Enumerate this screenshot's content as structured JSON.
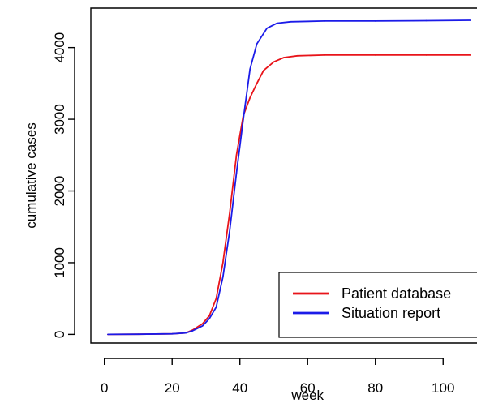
{
  "chart_data": {
    "type": "line",
    "title": "",
    "xlabel": "week",
    "ylabel": "cumulative cases",
    "xlim": [
      -4,
      110
    ],
    "ylim": [
      -120,
      4550
    ],
    "xticks": [
      0,
      20,
      40,
      60,
      80,
      100
    ],
    "yticks": [
      0,
      1000,
      2000,
      3000,
      4000
    ],
    "grid": false,
    "legend_position": "bottom-right",
    "series": [
      {
        "name": "Patient database",
        "color": "#e8141a",
        "points": [
          [
            1,
            0
          ],
          [
            10,
            2
          ],
          [
            20,
            8
          ],
          [
            24,
            20
          ],
          [
            26,
            60
          ],
          [
            29,
            150
          ],
          [
            31,
            260
          ],
          [
            33,
            500
          ],
          [
            35,
            1000
          ],
          [
            37,
            1700
          ],
          [
            39,
            2500
          ],
          [
            41,
            3050
          ],
          [
            43,
            3300
          ],
          [
            45,
            3500
          ],
          [
            47,
            3680
          ],
          [
            50,
            3800
          ],
          [
            53,
            3860
          ],
          [
            57,
            3885
          ],
          [
            65,
            3895
          ],
          [
            80,
            3895
          ],
          [
            95,
            3895
          ],
          [
            108,
            3895
          ]
        ]
      },
      {
        "name": "Situation report",
        "color": "#1b1be8",
        "points": [
          [
            1,
            0
          ],
          [
            10,
            2
          ],
          [
            20,
            8
          ],
          [
            24,
            20
          ],
          [
            26,
            50
          ],
          [
            29,
            120
          ],
          [
            31,
            220
          ],
          [
            33,
            380
          ],
          [
            35,
            800
          ],
          [
            37,
            1450
          ],
          [
            39,
            2250
          ],
          [
            41,
            3000
          ],
          [
            43,
            3700
          ],
          [
            45,
            4050
          ],
          [
            48,
            4270
          ],
          [
            51,
            4340
          ],
          [
            55,
            4360
          ],
          [
            65,
            4370
          ],
          [
            80,
            4370
          ],
          [
            95,
            4375
          ],
          [
            108,
            4380
          ]
        ]
      }
    ]
  }
}
